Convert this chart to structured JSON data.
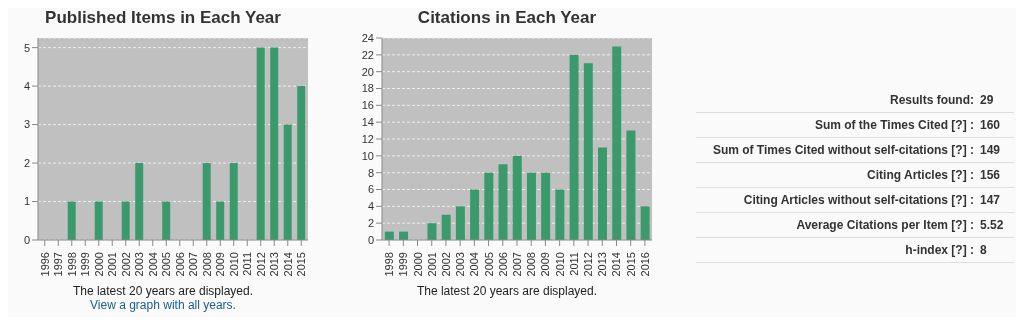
{
  "chart_data": [
    {
      "type": "bar",
      "title": "Published Items in Each Year",
      "categories": [
        "1996",
        "1997",
        "1998",
        "1999",
        "2000",
        "2001",
        "2002",
        "2003",
        "2004",
        "2005",
        "2006",
        "2007",
        "2008",
        "2009",
        "2010",
        "2011",
        "2012",
        "2013",
        "2014",
        "2015"
      ],
      "values": [
        0,
        0,
        1,
        0,
        1,
        0,
        1,
        2,
        0,
        1,
        0,
        0,
        2,
        1,
        2,
        0,
        5,
        5,
        3,
        4
      ],
      "color": "#3a9a6c",
      "ylim": [
        0,
        5.25
      ],
      "yticks": [
        0,
        1,
        2,
        3,
        4,
        5
      ],
      "grid": "y",
      "annotations": [
        "The latest 20 years are displayed.",
        "View a graph with all years."
      ]
    },
    {
      "type": "bar",
      "title": "Citations in Each Year",
      "categories": [
        "1998",
        "1999",
        "2000",
        "2001",
        "2002",
        "2003",
        "2004",
        "2005",
        "2006",
        "2007",
        "2008",
        "2009",
        "2010",
        "2011",
        "2012",
        "2013",
        "2014",
        "2015",
        "2016"
      ],
      "values": [
        1,
        1,
        0,
        2,
        3,
        4,
        6,
        8,
        9,
        10,
        8,
        8,
        6,
        22,
        21,
        11,
        23,
        13,
        4
      ],
      "color": "#3a9a6c",
      "ylim": [
        0,
        24
      ],
      "yticks": [
        0,
        2,
        4,
        6,
        8,
        10,
        12,
        14,
        16,
        18,
        20,
        22,
        24
      ],
      "grid": "y",
      "annotations": [
        "The latest 20 years are displayed."
      ]
    },
    {
      "type": "other",
      "annotations": [
        "Results found:",
        "29",
        "Sum of the Times Cited [?] :",
        "160",
        "Sum of Times Cited without self-citations [?] :",
        "149",
        "Citing Articles [?] :",
        "156",
        "Citing Articles without self-citations [?] :",
        "147",
        "Average Citations per Item [?] :",
        "5.52",
        "h-index [?] :",
        "8"
      ]
    }
  ]
}
